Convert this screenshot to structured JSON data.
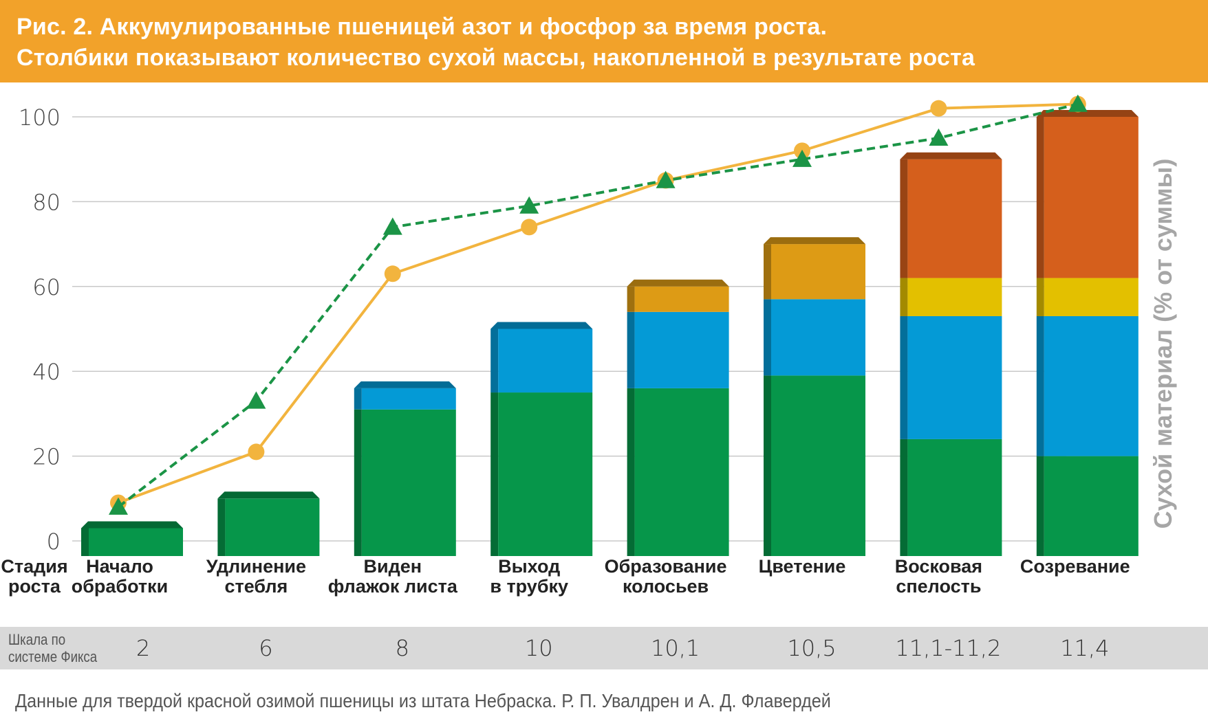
{
  "header": {
    "title_line1": "Рис. 2. Аккумулированные пшеницей азот и фосфор за время роста.",
    "title_line2": "Столбики показывают количество сухой массы, накопленной в результате роста"
  },
  "colors": {
    "header_bg": "#f2a22a",
    "green": "#06964a",
    "blue": "#049ad6",
    "amber": "#dd9b15",
    "yellow": "#e3c000",
    "orange": "#d55f1c",
    "nitrogen_line": "#f2b43e",
    "phosphorus_line": "#1b9446",
    "axis_label": "#a6a6a6"
  },
  "chart_data": {
    "type": "bar",
    "stacked": true,
    "categories": [
      "Начало обработки",
      "Удлинение стебля",
      "Виден флажок листа",
      "Выход в трубку",
      "Образование колосьев",
      "Цветение",
      "Восковая спелость",
      "Созревание"
    ],
    "category_label_lines": [
      [
        "Начало",
        "обработки"
      ],
      [
        "Удлинение",
        "стебля"
      ],
      [
        "Виден",
        "флажок листа"
      ],
      [
        "Выход",
        "в трубку"
      ],
      [
        "Образование",
        "колосьев"
      ],
      [
        "Цветение"
      ],
      [
        "Восковая",
        "спелость"
      ],
      [
        "Созревание"
      ]
    ],
    "x_axis_title_lines": [
      "Стадия",
      "роста"
    ],
    "ylabel": "Сухой материал (% от суммы)",
    "ylim": [
      0,
      100
    ],
    "yticks": [
      0,
      20,
      40,
      60,
      80,
      100
    ],
    "grid": true,
    "bar_segments": [
      {
        "color": "green",
        "values": [
          3,
          10,
          31,
          35,
          36,
          39,
          24,
          20
        ]
      },
      {
        "color": "blue",
        "values": [
          0,
          0,
          5,
          15,
          18,
          18,
          29,
          33
        ]
      },
      {
        "color": "amber",
        "values": [
          0,
          0,
          0,
          0,
          6,
          13,
          0,
          0
        ]
      },
      {
        "color": "yellow",
        "values": [
          0,
          0,
          0,
          0,
          0,
          0,
          9,
          9
        ]
      },
      {
        "color": "orange",
        "values": [
          0,
          0,
          0,
          0,
          0,
          0,
          28,
          38
        ]
      }
    ],
    "lines": [
      {
        "marker": "circle",
        "style": "solid",
        "color": "nitrogen_line",
        "values": [
          9,
          21,
          63,
          74,
          85,
          92,
          102,
          103
        ]
      },
      {
        "marker": "triangle",
        "style": "dashed",
        "color": "phosphorus_line",
        "values": [
          8,
          33,
          74,
          79,
          85,
          90,
          95,
          103
        ]
      }
    ],
    "scale": {
      "label_lines": [
        "Шкала по",
        "системе Фикса"
      ],
      "values": [
        "2",
        "6",
        "8",
        "10",
        "10,1",
        "10,5",
        "11,1-11,2",
        "11,4"
      ]
    }
  },
  "source": "Данные для твердой красной озимой пшеницы из штата Небраска. Р. П. Увалдрен и А. Д. Флавердей"
}
